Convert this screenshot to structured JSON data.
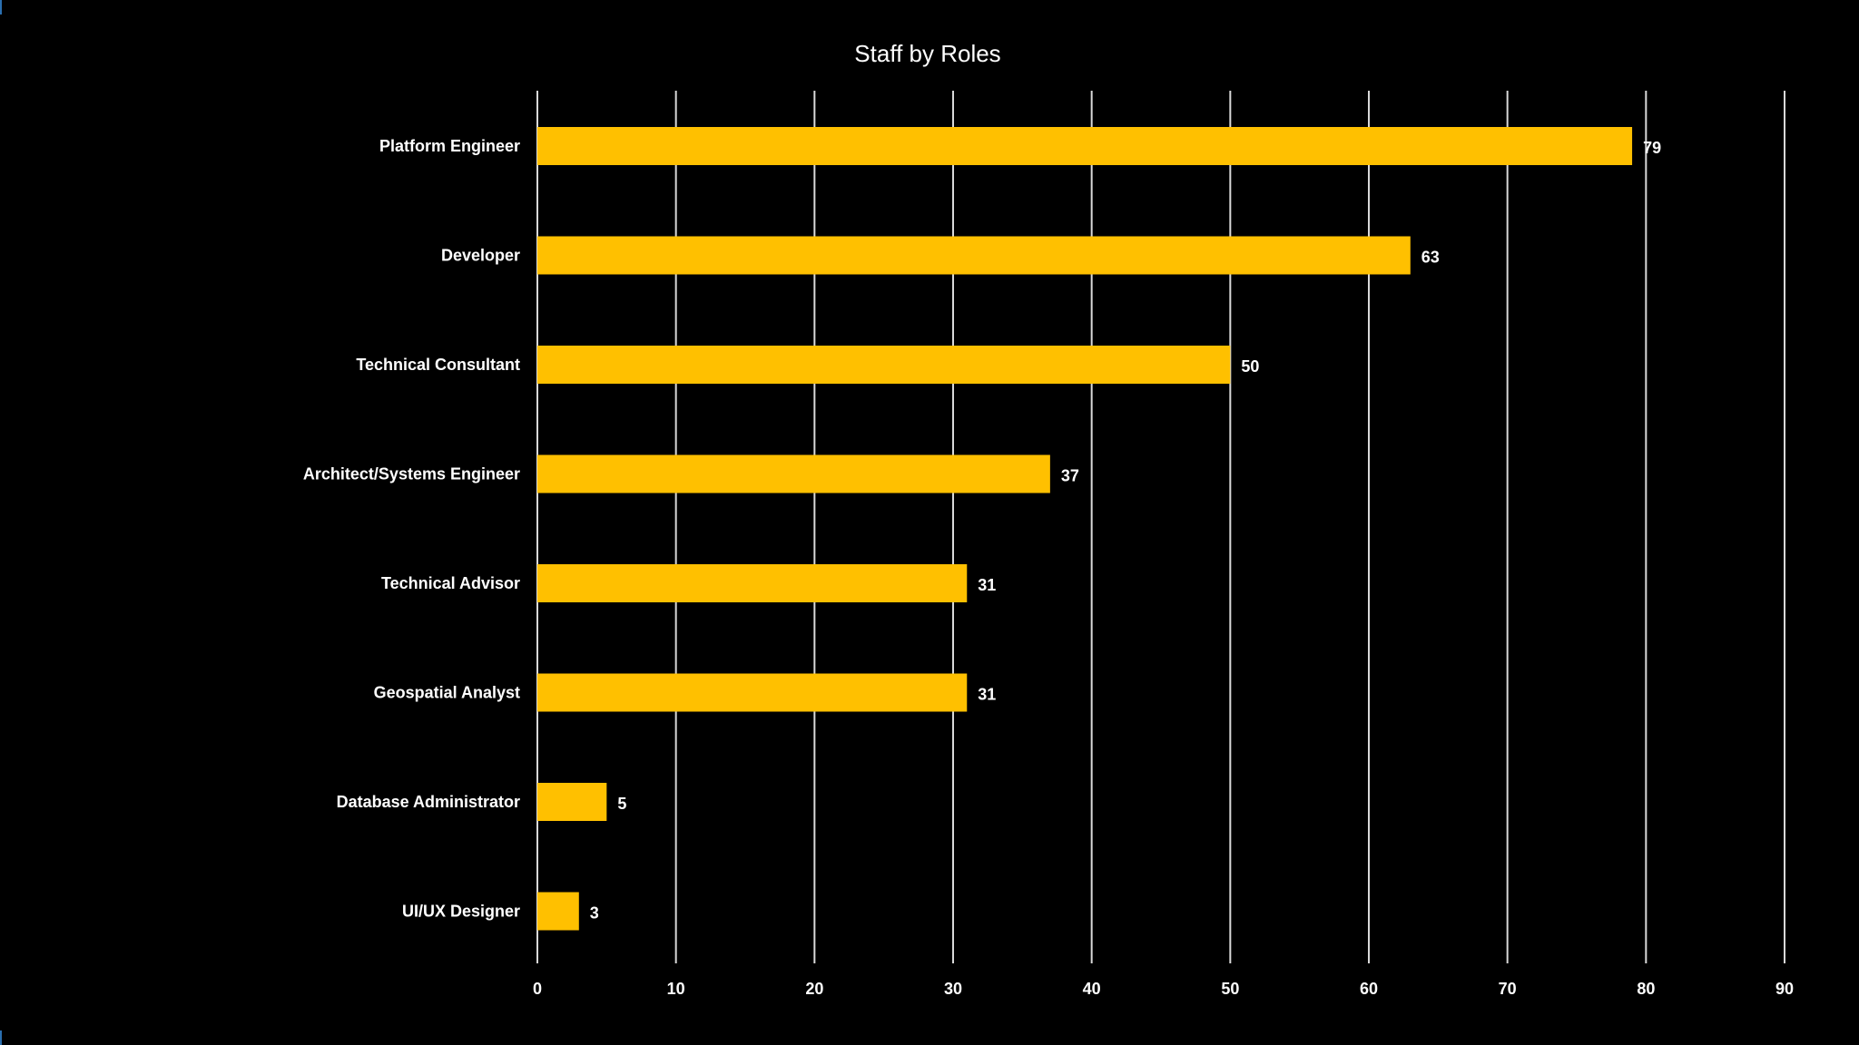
{
  "chart_data": {
    "type": "bar",
    "orientation": "horizontal",
    "title": "Staff by Roles",
    "xlabel": "",
    "ylabel": "",
    "categories": [
      "Platform Engineer",
      "Developer",
      "Technical Consultant",
      "Architect/Systems Engineer",
      "Technical Advisor",
      "Geospatial Analyst",
      "Database Administrator",
      "UI/UX Designer"
    ],
    "values": [
      79,
      63,
      50,
      37,
      31,
      31,
      5,
      3
    ],
    "xlim": [
      0,
      90
    ],
    "ticks": [
      0,
      10,
      20,
      30,
      40,
      50,
      60,
      70,
      80,
      90
    ],
    "grid": true,
    "legend": "none",
    "data_labels": true,
    "colors": {
      "background": "#000000",
      "bar": "#FFC000",
      "text": "#FFFFFF",
      "grid": "#D9D9D9"
    }
  }
}
